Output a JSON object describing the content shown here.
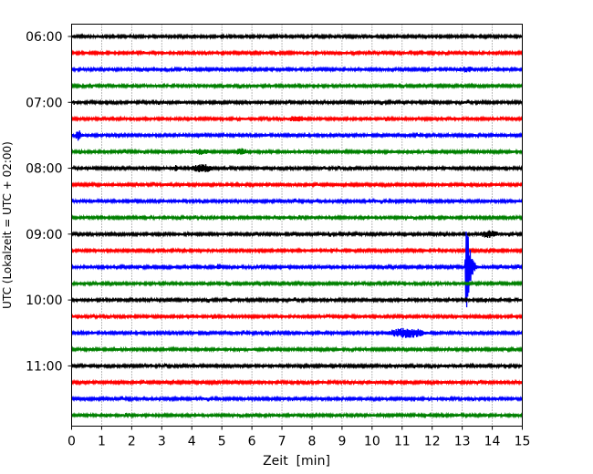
{
  "chart_data": {
    "type": "line",
    "title": "",
    "xlabel": "Zeit  [min]",
    "ylabel": "UTC (Lokalzeit = UTC + 02:00)",
    "xlim": [
      0,
      15
    ],
    "x_ticks": [
      "0",
      "1",
      "2",
      "3",
      "4",
      "5",
      "6",
      "7",
      "8",
      "9",
      "10",
      "11",
      "12",
      "13",
      "14",
      "15"
    ],
    "y_ticks": [
      "06:00",
      "07:00",
      "08:00",
      "09:00",
      "10:00",
      "11:00"
    ],
    "grid": "vertical dotted",
    "trace_count": 24,
    "trace_interval_min": 15,
    "colors": [
      "#000000",
      "#ff0000",
      "#0000ff",
      "#008000"
    ],
    "events": [
      {
        "trace": 2,
        "start": 12.8,
        "end": 13.5,
        "amp": 2.5
      },
      {
        "trace": 5,
        "start": 7.1,
        "end": 7.9,
        "amp": 2.5
      },
      {
        "trace": 6,
        "start": 0.1,
        "end": 0.35,
        "amp": 5
      },
      {
        "trace": 7,
        "start": 3.9,
        "end": 4.7,
        "amp": 2.5
      },
      {
        "trace": 7,
        "start": 5.4,
        "end": 5.9,
        "amp": 3
      },
      {
        "trace": 8,
        "start": 3.3,
        "end": 3.6,
        "amp": 2.5
      },
      {
        "trace": 8,
        "start": 3.9,
        "end": 4.8,
        "amp": 4
      },
      {
        "trace": 12,
        "start": 13.5,
        "end": 14.3,
        "amp": 3.5
      },
      {
        "trace": 14,
        "start": 4.8,
        "end": 5.0,
        "amp": 3
      },
      {
        "trace": 14,
        "start": 13.1,
        "end": 13.9,
        "amp": 60,
        "quake": true
      },
      {
        "trace": 16,
        "start": 13.7,
        "end": 13.85,
        "amp": 3
      },
      {
        "trace": 18,
        "start": 10.4,
        "end": 11.9,
        "amp": 5
      }
    ]
  }
}
